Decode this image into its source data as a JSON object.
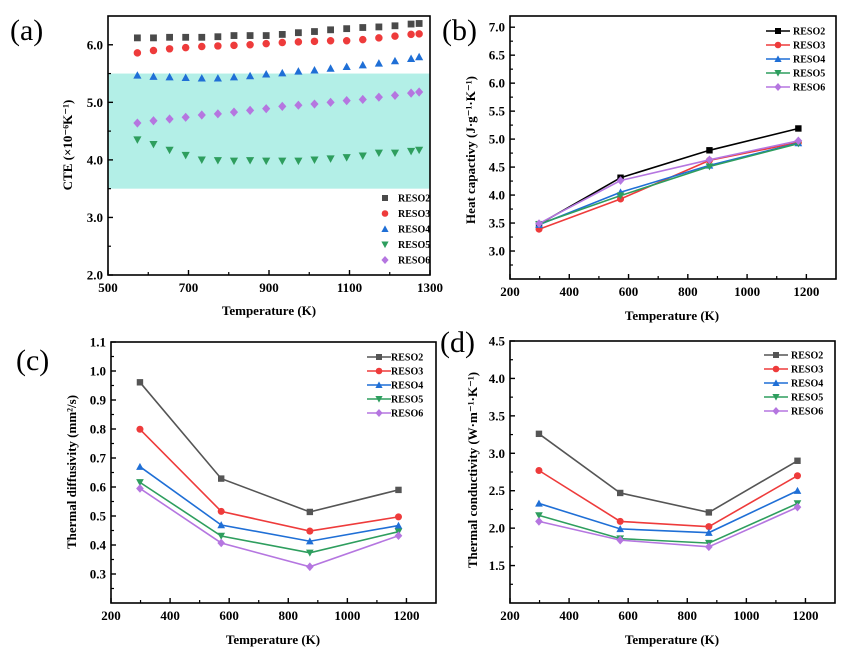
{
  "figure": {
    "panel_labels": [
      "(a)",
      "(b)",
      "(c)",
      "(d)"
    ]
  },
  "chart_data": [
    {
      "panel": "(a)",
      "type": "scatter",
      "title": "",
      "xlabel": "Temperature (K)",
      "ylabel": "CTE (×10⁻⁶K⁻¹)",
      "xlim": [
        500,
        1300
      ],
      "ylim": [
        2.0,
        6.5
      ],
      "xticks": [
        500,
        700,
        900,
        1100,
        1300
      ],
      "xtick_labels": [
        "500",
        "700",
        "900",
        "1100",
        "1300"
      ],
      "yticks": [
        2.0,
        3.0,
        4.0,
        5.0,
        6.0
      ],
      "ytick_labels": [
        "2.0",
        "3.0",
        "4.0",
        "5.0",
        "6.0"
      ],
      "grid": false,
      "legend_position": "bottom-right",
      "shaded_band": {
        "y_range": [
          3.5,
          5.5
        ],
        "color": "#b3efe7"
      },
      "x": [
        573,
        613,
        653,
        693,
        733,
        773,
        813,
        853,
        893,
        933,
        973,
        1013,
        1053,
        1093,
        1133,
        1173,
        1213,
        1253,
        1273
      ],
      "series": [
        {
          "name": "RESO2",
          "color": "#4a4a4a",
          "marker": "square",
          "values": [
            6.12,
            6.12,
            6.13,
            6.13,
            6.13,
            6.14,
            6.16,
            6.16,
            6.16,
            6.18,
            6.21,
            6.23,
            6.26,
            6.28,
            6.3,
            6.31,
            6.33,
            6.36,
            6.37
          ]
        },
        {
          "name": "RESO3",
          "color": "#ee3b3b",
          "marker": "circle",
          "values": [
            5.86,
            5.9,
            5.93,
            5.95,
            5.97,
            5.98,
            5.99,
            6.0,
            6.02,
            6.04,
            6.05,
            6.06,
            6.07,
            6.07,
            6.09,
            6.12,
            6.15,
            6.18,
            6.19
          ]
        },
        {
          "name": "RESO4",
          "color": "#1f6fd6",
          "marker": "triangle-up",
          "values": [
            5.47,
            5.45,
            5.44,
            5.43,
            5.42,
            5.42,
            5.44,
            5.46,
            5.49,
            5.51,
            5.54,
            5.56,
            5.59,
            5.62,
            5.65,
            5.68,
            5.72,
            5.76,
            5.79
          ]
        },
        {
          "name": "RESO5",
          "color": "#2e9e5e",
          "marker": "triangle-down",
          "values": [
            4.35,
            4.27,
            4.17,
            4.08,
            4.0,
            3.99,
            3.98,
            3.99,
            3.98,
            3.98,
            3.98,
            4.0,
            4.02,
            4.04,
            4.07,
            4.12,
            4.12,
            4.15,
            4.17
          ]
        },
        {
          "name": "RESO6",
          "color": "#b576e0",
          "marker": "diamond",
          "values": [
            4.64,
            4.68,
            4.71,
            4.74,
            4.78,
            4.8,
            4.83,
            4.86,
            4.89,
            4.93,
            4.95,
            4.97,
            5.0,
            5.03,
            5.05,
            5.09,
            5.12,
            5.16,
            5.18
          ]
        }
      ]
    },
    {
      "panel": "(b)",
      "type": "line",
      "title": "",
      "xlabel": "Temperature (K)",
      "ylabel": "Heat capactivy (J·g⁻¹·K⁻¹)",
      "xlim": [
        200,
        1300
      ],
      "ylim": [
        2.5,
        7.2
      ],
      "xticks": [
        200,
        400,
        600,
        800,
        1000,
        1200
      ],
      "xtick_labels": [
        "200",
        "400",
        "600",
        "800",
        "1000",
        "1200"
      ],
      "yticks": [
        3.0,
        3.5,
        4.0,
        4.5,
        5.0,
        5.5,
        6.0,
        6.5,
        7.0
      ],
      "ytick_labels": [
        "3.0",
        "3.5",
        "4.0",
        "4.5",
        "5.0",
        "5.5",
        "6.0",
        "6.5",
        "7.0"
      ],
      "grid": false,
      "legend_position": "top-right",
      "x": [
        298,
        573,
        873,
        1173
      ],
      "series": [
        {
          "name": "RESO2",
          "color": "#000000",
          "marker": "square",
          "values": [
            3.48,
            4.31,
            4.8,
            5.19
          ]
        },
        {
          "name": "RESO3",
          "color": "#ee3b3b",
          "marker": "circle",
          "values": [
            3.39,
            3.93,
            4.62,
            4.94
          ]
        },
        {
          "name": "RESO4",
          "color": "#1f6fd6",
          "marker": "triangle-up",
          "values": [
            3.47,
            4.05,
            4.53,
            4.93
          ]
        },
        {
          "name": "RESO5",
          "color": "#2e9e5e",
          "marker": "triangle-down",
          "values": [
            3.48,
            3.99,
            4.51,
            4.92
          ]
        },
        {
          "name": "RESO6",
          "color": "#b576e0",
          "marker": "diamond",
          "values": [
            3.49,
            4.26,
            4.63,
            4.97
          ]
        }
      ]
    },
    {
      "panel": "(c)",
      "type": "line",
      "title": "",
      "xlabel": "Temperature (K)",
      "ylabel": "Thermal diffusivity (mm²/s)",
      "xlim": [
        200,
        1300
      ],
      "ylim": [
        0.2,
        1.1
      ],
      "xticks": [
        200,
        400,
        600,
        800,
        1000,
        1200
      ],
      "xtick_labels": [
        "200",
        "400",
        "600",
        "800",
        "1000",
        "1200"
      ],
      "yticks": [
        0.3,
        0.4,
        0.5,
        0.6,
        0.7,
        0.8,
        0.9,
        1.0,
        1.1
      ],
      "ytick_labels": [
        "0.3",
        "0.4",
        "0.5",
        "0.6",
        "0.7",
        "0.8",
        "0.9",
        "1.0",
        "1.1"
      ],
      "grid": false,
      "legend_position": "top-right",
      "x": [
        298,
        573,
        873,
        1173
      ],
      "series": [
        {
          "name": "RESO2",
          "color": "#555555",
          "marker": "square",
          "values": [
            0.961,
            0.629,
            0.514,
            0.59
          ]
        },
        {
          "name": "RESO3",
          "color": "#ee3b3b",
          "marker": "circle",
          "values": [
            0.799,
            0.516,
            0.448,
            0.497
          ]
        },
        {
          "name": "RESO4",
          "color": "#1f6fd6",
          "marker": "triangle-up",
          "values": [
            0.67,
            0.469,
            0.413,
            0.467
          ]
        },
        {
          "name": "RESO5",
          "color": "#2e9e5e",
          "marker": "triangle-down",
          "values": [
            0.616,
            0.431,
            0.373,
            0.446
          ]
        },
        {
          "name": "RESO6",
          "color": "#b576e0",
          "marker": "diamond",
          "values": [
            0.595,
            0.407,
            0.325,
            0.432
          ]
        }
      ]
    },
    {
      "panel": "(d)",
      "type": "line",
      "title": "",
      "xlabel": "Temperature (K)",
      "ylabel": "Thermal conductivity (W·m⁻¹·K⁻¹)",
      "xlim": [
        200,
        1300
      ],
      "ylim": [
        1.0,
        4.5
      ],
      "xticks": [
        200,
        400,
        600,
        800,
        1000,
        1200
      ],
      "xtick_labels": [
        "200",
        "400",
        "600",
        "800",
        "1000",
        "1200"
      ],
      "yticks": [
        1.5,
        2.0,
        2.5,
        3.0,
        3.5,
        4.0,
        4.5
      ],
      "ytick_labels": [
        "1.5",
        "2.0",
        "2.5",
        "3.0",
        "3.5",
        "4.0",
        "4.5"
      ],
      "grid": false,
      "legend_position": "top-right",
      "x": [
        298,
        573,
        873,
        1173
      ],
      "series": [
        {
          "name": "RESO2",
          "color": "#555555",
          "marker": "square",
          "values": [
            3.26,
            2.47,
            2.21,
            2.9
          ]
        },
        {
          "name": "RESO3",
          "color": "#ee3b3b",
          "marker": "circle",
          "values": [
            2.77,
            2.09,
            2.02,
            2.7
          ]
        },
        {
          "name": "RESO4",
          "color": "#1f6fd6",
          "marker": "triangle-up",
          "values": [
            2.33,
            1.99,
            1.94,
            2.5
          ]
        },
        {
          "name": "RESO5",
          "color": "#2e9e5e",
          "marker": "triangle-down",
          "values": [
            2.17,
            1.86,
            1.8,
            2.33
          ]
        },
        {
          "name": "RESO6",
          "color": "#b576e0",
          "marker": "diamond",
          "values": [
            2.09,
            1.84,
            1.75,
            2.28
          ]
        }
      ]
    }
  ]
}
